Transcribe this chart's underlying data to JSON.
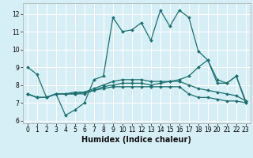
{
  "xlabel": "Humidex (Indice chaleur)",
  "bg_color": "#d6eef5",
  "line_color": "#1a7070",
  "grid_color": "#ffffff",
  "xlim": [
    -0.5,
    23.5
  ],
  "ylim": [
    5.85,
    12.6
  ],
  "yticks": [
    6,
    7,
    8,
    9,
    10,
    11,
    12
  ],
  "xticks": [
    0,
    1,
    2,
    3,
    4,
    5,
    6,
    7,
    8,
    9,
    10,
    11,
    12,
    13,
    14,
    15,
    16,
    17,
    18,
    19,
    20,
    21,
    22,
    23
  ],
  "lines": [
    [
      9.0,
      8.6,
      7.3,
      7.5,
      6.3,
      6.6,
      7.0,
      8.3,
      8.5,
      11.8,
      11.0,
      11.1,
      11.5,
      10.5,
      12.2,
      11.3,
      12.2,
      11.8,
      9.9,
      9.4,
      8.1,
      8.1,
      8.5,
      7.0
    ],
    [
      7.5,
      7.3,
      7.3,
      7.5,
      7.5,
      7.5,
      7.5,
      7.7,
      7.9,
      8.0,
      8.1,
      8.1,
      8.1,
      8.0,
      8.1,
      8.2,
      8.3,
      8.5,
      9.0,
      9.4,
      8.3,
      8.1,
      8.5,
      7.1
    ],
    [
      7.5,
      7.3,
      7.3,
      7.5,
      7.5,
      7.6,
      7.6,
      7.7,
      7.8,
      7.9,
      7.9,
      7.9,
      7.9,
      7.9,
      7.9,
      7.9,
      7.9,
      7.5,
      7.3,
      7.3,
      7.2,
      7.1,
      7.1,
      7.0
    ],
    [
      7.5,
      7.3,
      7.3,
      7.5,
      7.5,
      7.5,
      7.6,
      7.8,
      8.0,
      8.2,
      8.3,
      8.3,
      8.3,
      8.2,
      8.2,
      8.2,
      8.2,
      8.0,
      7.8,
      7.7,
      7.6,
      7.5,
      7.4,
      7.1
    ]
  ],
  "tick_fontsize": 5.5,
  "xlabel_fontsize": 7,
  "xlabel_fontweight": "bold"
}
